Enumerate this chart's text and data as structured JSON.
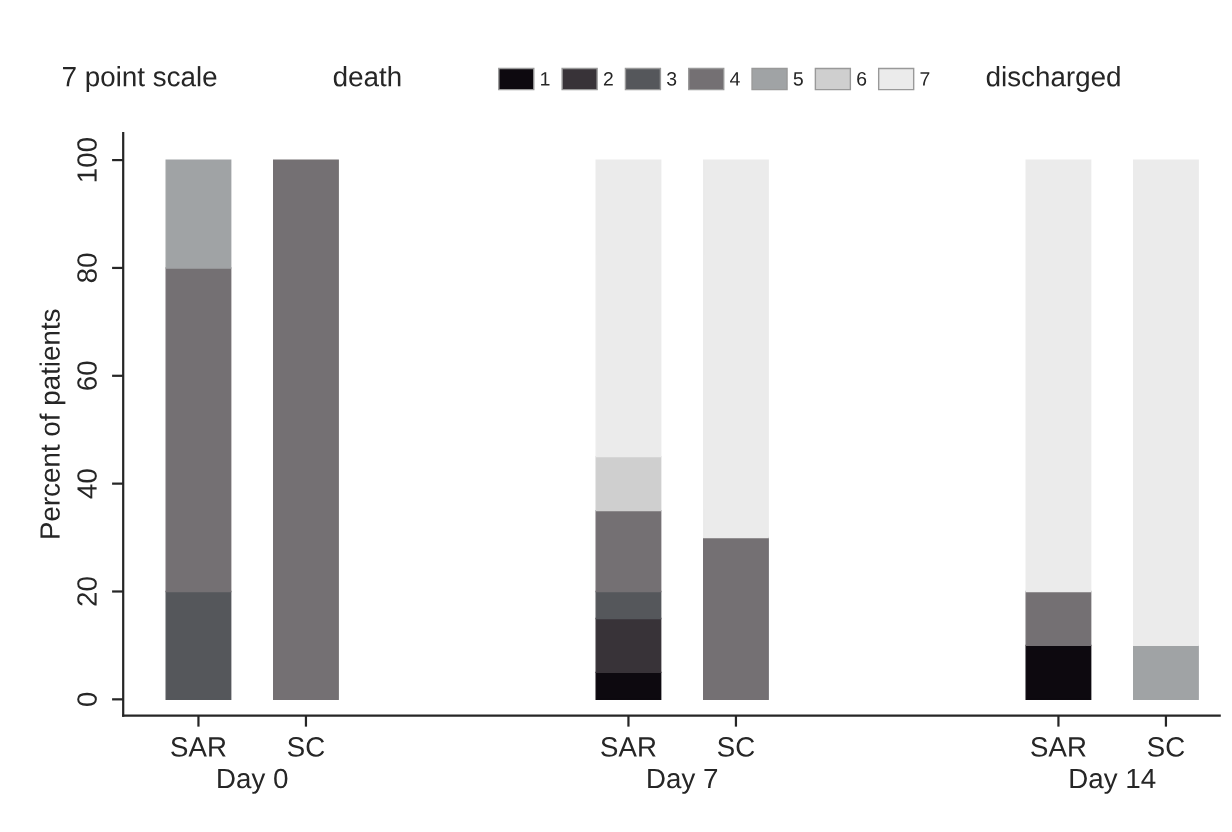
{
  "chart_data": {
    "type": "bar",
    "stacked": true,
    "categories": [
      "SAR",
      "SC",
      null,
      null,
      "SAR",
      "SC",
      null,
      null,
      "SAR",
      "SC"
    ],
    "ylabel": "Percent of patients",
    "ylim": [
      -3,
      105
    ],
    "yticks": [
      0,
      20,
      40,
      60,
      80,
      100
    ],
    "legend_title": "7 point scale",
    "legend": "top",
    "grid": false,
    "annotations": [
      "Day 0",
      "Day 7",
      "Day 14",
      "death",
      "discharged"
    ],
    "series": [
      {
        "name": "1",
        "color": "#0d090f",
        "values": [
          null,
          null,
          null,
          null,
          5,
          null,
          null,
          null,
          10,
          null
        ]
      },
      {
        "name": "2",
        "color": "#383338",
        "values": [
          null,
          null,
          null,
          null,
          10,
          null,
          null,
          null,
          null,
          null
        ]
      },
      {
        "name": "3",
        "color": "#55575b",
        "values": [
          20,
          null,
          null,
          null,
          5,
          null,
          null,
          null,
          null,
          null
        ]
      },
      {
        "name": "4",
        "color": "#747073",
        "values": [
          60,
          100,
          null,
          null,
          15,
          30,
          null,
          null,
          10,
          null
        ]
      },
      {
        "name": "5",
        "color": "#a0a3a5",
        "values": [
          20,
          null,
          null,
          null,
          null,
          null,
          null,
          null,
          null,
          10
        ]
      },
      {
        "name": "6",
        "color": "#cfcfcf",
        "values": [
          null,
          null,
          null,
          null,
          10,
          null,
          null,
          null,
          null,
          null
        ]
      },
      {
        "name": "7",
        "color": "#ebebeb",
        "values": [
          null,
          null,
          null,
          null,
          55,
          70,
          null,
          null,
          80,
          90
        ]
      }
    ]
  }
}
